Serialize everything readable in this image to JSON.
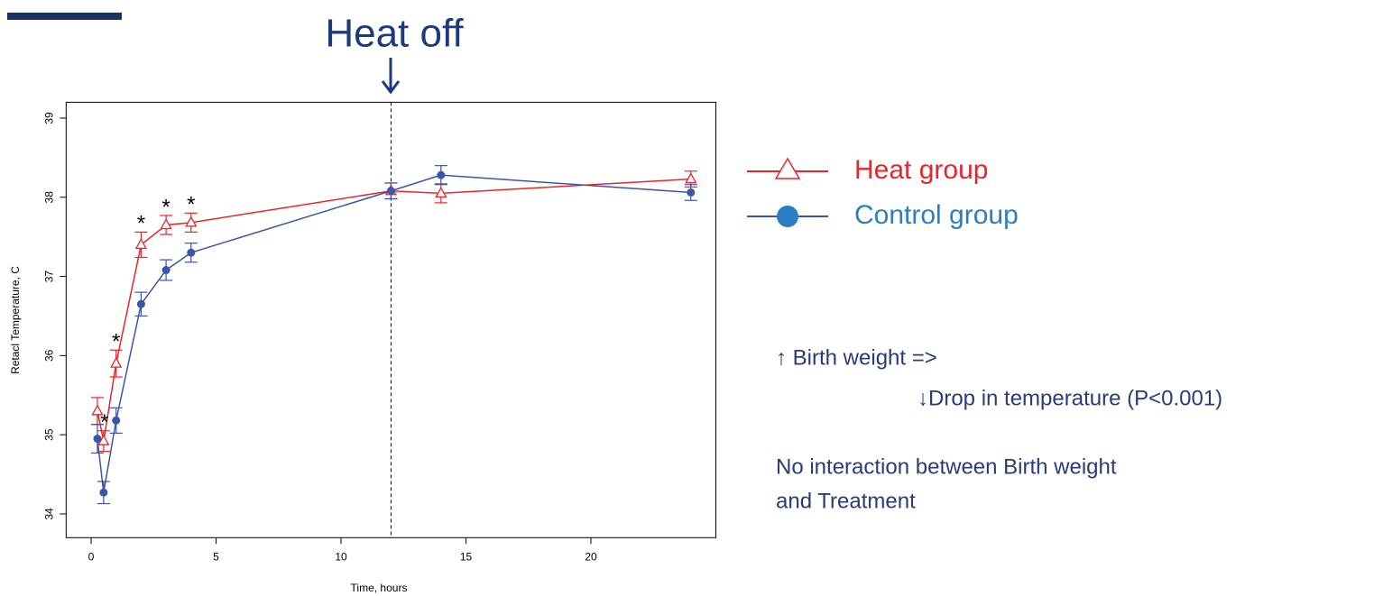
{
  "chart_data": {
    "type": "line",
    "title": "Heat off",
    "xlabel": "Time, hours",
    "ylabel": "Retacl Temperature, C",
    "x": [
      0.25,
      0.5,
      1,
      2,
      3,
      4,
      12,
      14,
      24
    ],
    "series": [
      {
        "name": "Heat group",
        "color": "#e8262a",
        "label_color": "#e8262a",
        "marker": "triangle",
        "values": [
          35.3,
          34.92,
          35.9,
          37.4,
          37.65,
          37.68,
          38.08,
          38.05,
          38.23
        ],
        "errors": [
          0.17,
          0.13,
          0.17,
          0.16,
          0.12,
          0.12,
          0.1,
          0.12,
          0.1
        ]
      },
      {
        "name": "Control group",
        "color": "#3b55a8",
        "label_color": "#2a7fc0",
        "marker": "circle",
        "values": [
          34.95,
          34.27,
          35.18,
          36.65,
          37.08,
          37.3,
          38.08,
          38.28,
          38.06
        ],
        "errors": [
          0.18,
          0.14,
          0.16,
          0.15,
          0.13,
          0.12,
          0.1,
          0.12,
          0.1
        ]
      }
    ],
    "annotations": [
      {
        "text": "*",
        "x": 0.5
      },
      {
        "text": "*",
        "x": 1
      },
      {
        "text": "*",
        "x": 2
      },
      {
        "text": "*",
        "x": 3
      },
      {
        "text": "*",
        "x": 4
      }
    ],
    "vline": 12,
    "xlim": [
      -1,
      25
    ],
    "ylim": [
      33.7,
      39.2
    ],
    "xticks": [
      0,
      5,
      10,
      15,
      20
    ],
    "yticks": [
      34,
      35,
      36,
      37,
      38,
      39
    ]
  },
  "notes": [
    "↑ Birth weight =>",
    "↓Drop in temperature (P<0.001)",
    "No interaction between Birth weight",
    "and Treatment"
  ]
}
